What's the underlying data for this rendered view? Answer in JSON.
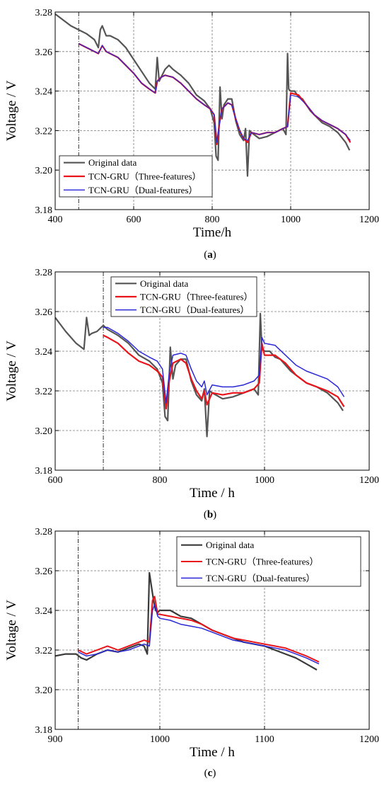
{
  "chart_data": [
    {
      "type": "line",
      "panel_label": "a",
      "xlabel": "Time/h",
      "ylabel": "Voltage / V",
      "xlim": [
        400,
        1200
      ],
      "ylim": [
        3.18,
        3.28
      ],
      "xticks": [
        400,
        600,
        800,
        1000,
        1200
      ],
      "yticks": [
        3.18,
        3.2,
        3.22,
        3.24,
        3.26,
        3.28
      ],
      "grid": true,
      "legend_position": "bottom-left",
      "vertical_marker": 460,
      "series": [
        {
          "name": "Original data",
          "color": "#555555",
          "width": 2.2,
          "x": [
            400,
            420,
            440,
            460,
            480,
            500,
            510,
            515,
            520,
            530,
            540,
            560,
            580,
            600,
            620,
            640,
            655,
            660,
            665,
            670,
            680,
            690,
            700,
            720,
            740,
            760,
            780,
            795,
            805,
            810,
            815,
            820,
            825,
            830,
            840,
            850,
            860,
            870,
            880,
            885,
            890,
            895,
            900,
            920,
            940,
            960,
            980,
            988,
            992,
            995,
            1000,
            1010,
            1020,
            1030,
            1040,
            1050,
            1060,
            1080,
            1100,
            1120,
            1140,
            1150
          ],
          "y": [
            3.279,
            3.276,
            3.273,
            3.271,
            3.269,
            3.266,
            3.262,
            3.271,
            3.273,
            3.268,
            3.268,
            3.266,
            3.262,
            3.256,
            3.25,
            3.244,
            3.241,
            3.257,
            3.245,
            3.247,
            3.251,
            3.253,
            3.251,
            3.248,
            3.244,
            3.238,
            3.235,
            3.231,
            3.224,
            3.207,
            3.205,
            3.242,
            3.226,
            3.233,
            3.236,
            3.236,
            3.225,
            3.218,
            3.215,
            3.221,
            3.197,
            3.22,
            3.219,
            3.216,
            3.217,
            3.219,
            3.221,
            3.218,
            3.259,
            3.241,
            3.24,
            3.24,
            3.237,
            3.236,
            3.233,
            3.23,
            3.228,
            3.224,
            3.222,
            3.219,
            3.214,
            3.21
          ]
        },
        {
          "name": "TCN-GRU（Three-features）",
          "color": "#e8141a",
          "width": 2.2,
          "x": [
            460,
            480,
            500,
            510,
            520,
            530,
            540,
            560,
            580,
            600,
            620,
            640,
            655,
            660,
            670,
            680,
            700,
            720,
            740,
            760,
            780,
            795,
            805,
            812,
            818,
            825,
            840,
            850,
            860,
            870,
            880,
            890,
            900,
            920,
            940,
            960,
            980,
            992,
            1000,
            1020,
            1040,
            1060,
            1080,
            1100,
            1120,
            1140,
            1152
          ],
          "y": [
            3.264,
            3.262,
            3.26,
            3.259,
            3.263,
            3.26,
            3.259,
            3.257,
            3.253,
            3.249,
            3.244,
            3.241,
            3.239,
            3.245,
            3.247,
            3.248,
            3.247,
            3.244,
            3.24,
            3.236,
            3.233,
            3.231,
            3.228,
            3.213,
            3.223,
            3.231,
            3.234,
            3.233,
            3.226,
            3.22,
            3.216,
            3.214,
            3.219,
            3.218,
            3.219,
            3.219,
            3.221,
            3.222,
            3.239,
            3.238,
            3.233,
            3.228,
            3.225,
            3.223,
            3.221,
            3.218,
            3.214
          ]
        },
        {
          "name": "TCN-GRU（Dual-features）",
          "color": "#2a28d6",
          "width": 1.2,
          "x": [
            460,
            480,
            500,
            510,
            520,
            530,
            540,
            560,
            580,
            600,
            620,
            640,
            655,
            660,
            670,
            680,
            700,
            720,
            740,
            760,
            780,
            795,
            805,
            812,
            818,
            825,
            840,
            850,
            860,
            870,
            880,
            890,
            900,
            920,
            940,
            960,
            980,
            992,
            1000,
            1020,
            1040,
            1060,
            1080,
            1100,
            1120,
            1140,
            1152
          ],
          "y": [
            3.264,
            3.262,
            3.26,
            3.259,
            3.263,
            3.26,
            3.259,
            3.257,
            3.253,
            3.249,
            3.244,
            3.241,
            3.239,
            3.245,
            3.247,
            3.248,
            3.247,
            3.244,
            3.24,
            3.236,
            3.233,
            3.231,
            3.228,
            3.214,
            3.223,
            3.231,
            3.234,
            3.233,
            3.226,
            3.22,
            3.216,
            3.215,
            3.219,
            3.218,
            3.219,
            3.219,
            3.221,
            3.222,
            3.238,
            3.237,
            3.233,
            3.228,
            3.225,
            3.223,
            3.221,
            3.218,
            3.215
          ]
        }
      ]
    },
    {
      "type": "line",
      "panel_label": "b",
      "xlabel": "Time / h",
      "ylabel": "Voltage / V",
      "xlim": [
        600,
        1200
      ],
      "ylim": [
        3.18,
        3.28
      ],
      "xticks": [
        600,
        800,
        1000,
        1200
      ],
      "yticks": [
        3.18,
        3.2,
        3.22,
        3.24,
        3.26,
        3.28
      ],
      "grid": true,
      "legend_position": "top-center",
      "vertical_marker": 692,
      "series": [
        {
          "name": "Original data",
          "color": "#555555",
          "width": 2.2,
          "x": [
            600,
            620,
            640,
            655,
            660,
            665,
            670,
            680,
            692,
            700,
            720,
            740,
            760,
            780,
            795,
            805,
            810,
            815,
            820,
            825,
            830,
            840,
            850,
            860,
            870,
            880,
            885,
            890,
            895,
            900,
            920,
            940,
            960,
            980,
            988,
            992,
            995,
            1000,
            1010,
            1020,
            1030,
            1040,
            1050,
            1060,
            1080,
            1100,
            1120,
            1140,
            1150
          ],
          "y": [
            3.257,
            3.25,
            3.244,
            3.241,
            3.257,
            3.248,
            3.249,
            3.25,
            3.253,
            3.251,
            3.248,
            3.244,
            3.238,
            3.235,
            3.231,
            3.224,
            3.207,
            3.205,
            3.242,
            3.226,
            3.233,
            3.236,
            3.236,
            3.225,
            3.218,
            3.215,
            3.221,
            3.197,
            3.22,
            3.219,
            3.216,
            3.217,
            3.219,
            3.221,
            3.218,
            3.259,
            3.241,
            3.24,
            3.24,
            3.237,
            3.236,
            3.233,
            3.23,
            3.228,
            3.224,
            3.222,
            3.219,
            3.214,
            3.21
          ]
        },
        {
          "name": "TCN-GRU（Three-features）",
          "color": "#e8141a",
          "width": 2.2,
          "x": [
            692,
            700,
            720,
            740,
            760,
            780,
            795,
            805,
            812,
            818,
            825,
            840,
            850,
            860,
            870,
            880,
            885,
            890,
            900,
            920,
            940,
            960,
            980,
            990,
            995,
            1000,
            1020,
            1040,
            1060,
            1080,
            1100,
            1120,
            1140,
            1152
          ],
          "y": [
            3.248,
            3.247,
            3.244,
            3.239,
            3.235,
            3.233,
            3.23,
            3.227,
            3.211,
            3.225,
            3.234,
            3.236,
            3.234,
            3.226,
            3.22,
            3.216,
            3.22,
            3.213,
            3.219,
            3.218,
            3.219,
            3.219,
            3.221,
            3.224,
            3.244,
            3.238,
            3.238,
            3.234,
            3.228,
            3.224,
            3.222,
            3.22,
            3.217,
            3.212
          ]
        },
        {
          "name": "TCN-GRU（Dual-features）",
          "color": "#2a28d6",
          "width": 1.5,
          "x": [
            692,
            700,
            720,
            740,
            760,
            780,
            795,
            805,
            812,
            818,
            825,
            840,
            850,
            860,
            870,
            880,
            885,
            890,
            900,
            920,
            940,
            960,
            980,
            990,
            995,
            1000,
            1020,
            1040,
            1060,
            1080,
            1100,
            1120,
            1140,
            1152
          ],
          "y": [
            3.252,
            3.252,
            3.249,
            3.245,
            3.24,
            3.237,
            3.235,
            3.231,
            3.214,
            3.229,
            3.238,
            3.239,
            3.238,
            3.231,
            3.225,
            3.222,
            3.225,
            3.218,
            3.223,
            3.222,
            3.222,
            3.223,
            3.225,
            3.228,
            3.247,
            3.244,
            3.243,
            3.238,
            3.233,
            3.23,
            3.228,
            3.226,
            3.222,
            3.217
          ]
        }
      ]
    },
    {
      "type": "line",
      "panel_label": "c",
      "xlabel": "Time / h",
      "ylabel": "Voltage / V",
      "xlim": [
        900,
        1200
      ],
      "ylim": [
        3.18,
        3.28
      ],
      "xticks": [
        900,
        1000,
        1100,
        1200
      ],
      "yticks": [
        3.18,
        3.2,
        3.22,
        3.24,
        3.26,
        3.28
      ],
      "grid": true,
      "legend_position": "top-right",
      "vertical_marker": 922,
      "series": [
        {
          "name": "Original data",
          "color": "#3a3a3a",
          "width": 2.2,
          "x": [
            900,
            910,
            920,
            925,
            930,
            940,
            950,
            960,
            970,
            980,
            985,
            988,
            990,
            992,
            994,
            996,
            998,
            1000,
            1010,
            1020,
            1030,
            1040,
            1050,
            1060,
            1070,
            1080,
            1090,
            1100,
            1110,
            1120,
            1130,
            1140,
            1150
          ],
          "y": [
            3.217,
            3.218,
            3.218,
            3.216,
            3.215,
            3.218,
            3.22,
            3.219,
            3.221,
            3.223,
            3.222,
            3.218,
            3.259,
            3.252,
            3.245,
            3.24,
            3.239,
            3.24,
            3.24,
            3.237,
            3.236,
            3.233,
            3.23,
            3.228,
            3.226,
            3.224,
            3.223,
            3.222,
            3.22,
            3.218,
            3.216,
            3.213,
            3.21
          ]
        },
        {
          "name": "TCN-GRU（Three-features）",
          "color": "#e8141a",
          "width": 2.0,
          "x": [
            922,
            930,
            940,
            950,
            960,
            970,
            980,
            985,
            990,
            993,
            995,
            998,
            1000,
            1010,
            1020,
            1030,
            1040,
            1050,
            1060,
            1070,
            1080,
            1090,
            1100,
            1110,
            1120,
            1130,
            1140,
            1152
          ],
          "y": [
            3.22,
            3.218,
            3.22,
            3.222,
            3.22,
            3.222,
            3.224,
            3.225,
            3.224,
            3.245,
            3.247,
            3.238,
            3.238,
            3.237,
            3.236,
            3.235,
            3.233,
            3.23,
            3.228,
            3.226,
            3.225,
            3.224,
            3.223,
            3.222,
            3.221,
            3.219,
            3.217,
            3.214
          ]
        },
        {
          "name": "TCN-GRU（Dual-features）",
          "color": "#2a28d6",
          "width": 1.5,
          "x": [
            922,
            930,
            940,
            950,
            960,
            970,
            980,
            985,
            990,
            993,
            995,
            998,
            1000,
            1010,
            1020,
            1030,
            1040,
            1050,
            1060,
            1070,
            1080,
            1090,
            1100,
            1110,
            1120,
            1130,
            1140,
            1152
          ],
          "y": [
            3.219,
            3.217,
            3.218,
            3.22,
            3.219,
            3.22,
            3.222,
            3.223,
            3.222,
            3.24,
            3.243,
            3.237,
            3.236,
            3.235,
            3.233,
            3.232,
            3.231,
            3.229,
            3.227,
            3.225,
            3.224,
            3.223,
            3.222,
            3.221,
            3.22,
            3.218,
            3.216,
            3.213
          ]
        }
      ]
    }
  ]
}
